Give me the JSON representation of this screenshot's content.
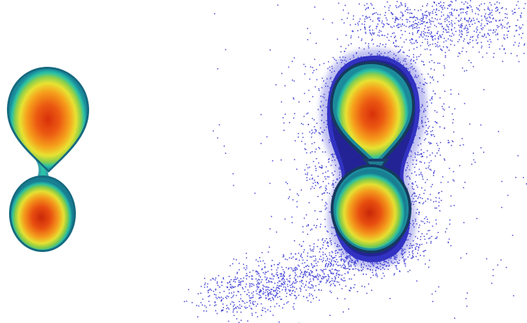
{
  "image": {
    "background": "#ffffff",
    "panels": [
      {
        "id": "left-system",
        "has_scatter_halo": false,
        "bodies": [
          {
            "id": "upper-star",
            "peak_color": "#e8440f"
          },
          {
            "id": "lower-star",
            "peak_color": "#e03a10"
          }
        ]
      },
      {
        "id": "right-system",
        "has_scatter_halo": true,
        "bodies": [
          {
            "id": "upper-star",
            "peak_color": "#e8440f"
          },
          {
            "id": "lower-star",
            "peak_color": "#e03a10"
          }
        ]
      }
    ],
    "colormap": [
      "#ffffff",
      "#3c3cd2",
      "#1a2a6a",
      "#1ec8b4",
      "#e6e632",
      "#f0a01e",
      "#e8440f"
    ],
    "particle_color": "#4a4ad8"
  }
}
